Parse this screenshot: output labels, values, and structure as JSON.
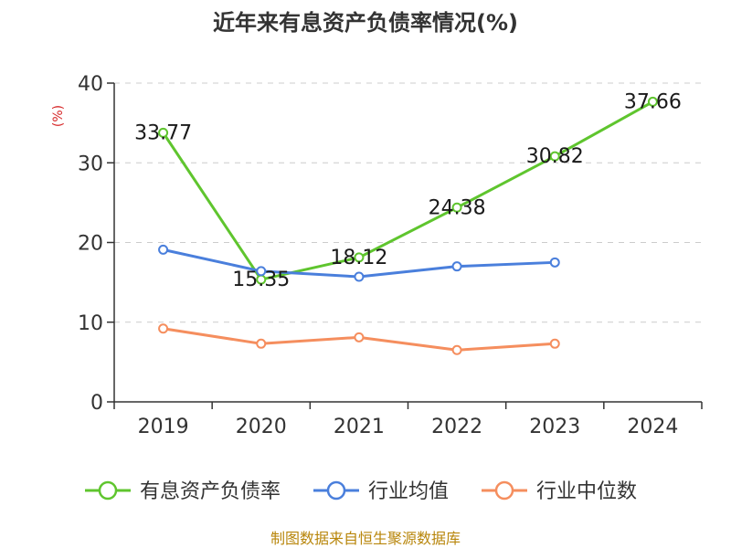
{
  "chart_data": {
    "type": "line",
    "title": "近年来有息资产负债率情况(%)",
    "ylabel": "(%)",
    "xlabel": "",
    "categories": [
      "2019",
      "2020",
      "2021",
      "2022",
      "2023",
      "2024"
    ],
    "ylim": [
      0,
      40
    ],
    "yticks": [
      0,
      10,
      20,
      30,
      40
    ],
    "grid": true,
    "legend_position": "bottom",
    "series": [
      {
        "name": "有息资产负债率",
        "color": "#5fc52e",
        "values": [
          33.77,
          15.35,
          18.12,
          24.38,
          30.82,
          37.66
        ],
        "labels": [
          "33.77",
          "15.35",
          "18.12",
          "24.38",
          "30.82",
          "37.66"
        ]
      },
      {
        "name": "行业均值",
        "color": "#4a7fdc",
        "values": [
          19.1,
          16.4,
          15.7,
          17.0,
          17.5,
          null
        ]
      },
      {
        "name": "行业中位数",
        "color": "#f58e5e",
        "values": [
          9.2,
          7.3,
          8.1,
          6.5,
          7.3,
          null
        ]
      }
    ]
  },
  "ylabel_color": "#d62728",
  "source": {
    "text": "制图数据来自恒生聚源数据库",
    "color": "#b8860b"
  }
}
